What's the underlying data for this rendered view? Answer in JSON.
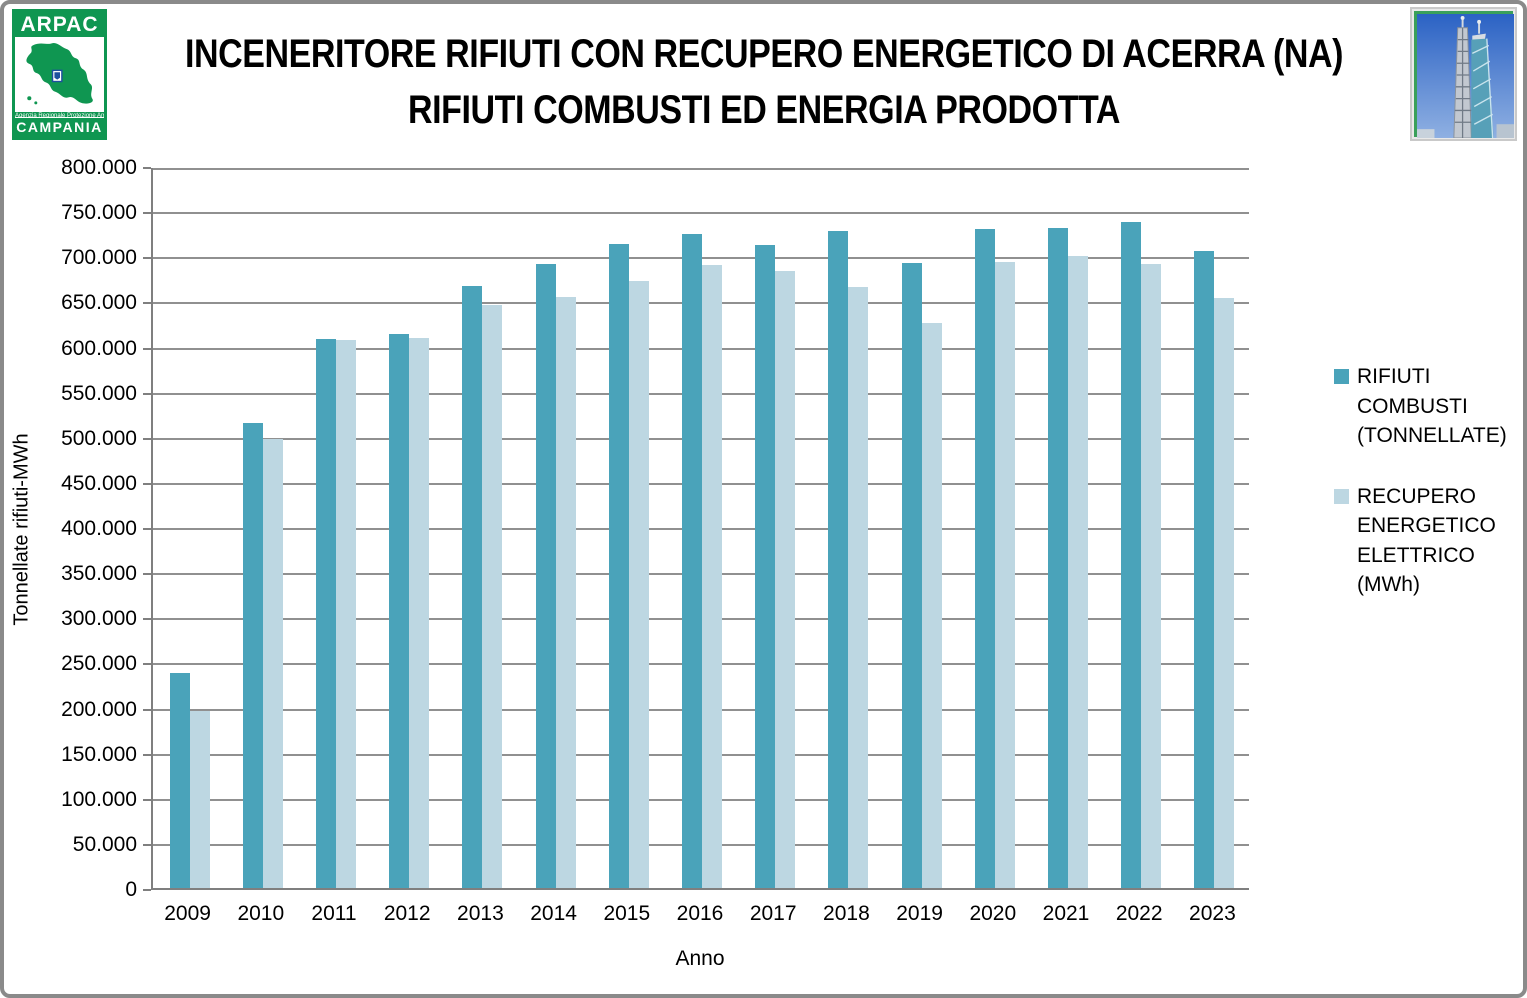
{
  "header": {
    "title_line1": "INCENERITORE RIFIUTI CON RECUPERO ENERGETICO DI ACERRA (NA)",
    "title_line2": "RIFIUTI COMBUSTI ED ENERGIA PRODOTTA",
    "logo": {
      "org": "ARPAC",
      "tagline": "Agenzia Regionale Protezione Ambientale",
      "region": "CAMPANIA",
      "brand_green": "#0f9651"
    },
    "photo": {
      "description": "incinerator towers against blue sky",
      "border_green": "#3aa05a"
    }
  },
  "chart_data": {
    "type": "bar",
    "title": "INCENERITORE RIFIUTI CON RECUPERO ENERGETICO DI ACERRA (NA) - RIFIUTI COMBUSTI ED ENERGIA PRODOTTA",
    "xlabel": "Anno",
    "ylabel": "Tonnellate rifiuti-MWh",
    "ylim": [
      0,
      800000
    ],
    "ytick_step": 50000,
    "ytick_labels": [
      "800.000",
      "750.000",
      "700.000",
      "650.000",
      "600.000",
      "550.000",
      "500.000",
      "450.000",
      "400.000",
      "350.000",
      "300.000",
      "250.000",
      "200.000",
      "150.000",
      "100.000",
      "50.000",
      "0"
    ],
    "grid": true,
    "legend_position": "right",
    "categories": [
      "2009",
      "2010",
      "2011",
      "2012",
      "2013",
      "2014",
      "2015",
      "2016",
      "2017",
      "2018",
      "2019",
      "2020",
      "2021",
      "2022",
      "2023"
    ],
    "series": [
      {
        "name": "RIFIUTI COMBUSTI (TONNELLATE)",
        "color": "#4aa3ba",
        "values": [
          238000,
          515000,
          608000,
          614000,
          667000,
          691000,
          714000,
          725000,
          712000,
          728000,
          692000,
          730000,
          731000,
          738000,
          706000
        ]
      },
      {
        "name": "RECUPERO ENERGETICO ELETTRICO (MWh)",
        "color": "#bdd7e2",
        "values": [
          196000,
          498000,
          607000,
          609000,
          646000,
          655000,
          673000,
          690000,
          684000,
          666000,
          626000,
          694000,
          700000,
          691000,
          654000
        ]
      }
    ]
  },
  "legend": {
    "items": [
      {
        "lines": [
          "RIFIUTI",
          "COMBUSTI",
          "(TONNELLATE)"
        ],
        "color": "#4aa3ba"
      },
      {
        "lines": [
          "RECUPERO",
          "ENERGETICO",
          "ELETTRICO",
          "(MWh)"
        ],
        "color": "#bdd7e2"
      }
    ]
  },
  "colors": {
    "gridline": "#909090",
    "axis": "#7f7f7f",
    "frame": "#8a8a8a"
  }
}
